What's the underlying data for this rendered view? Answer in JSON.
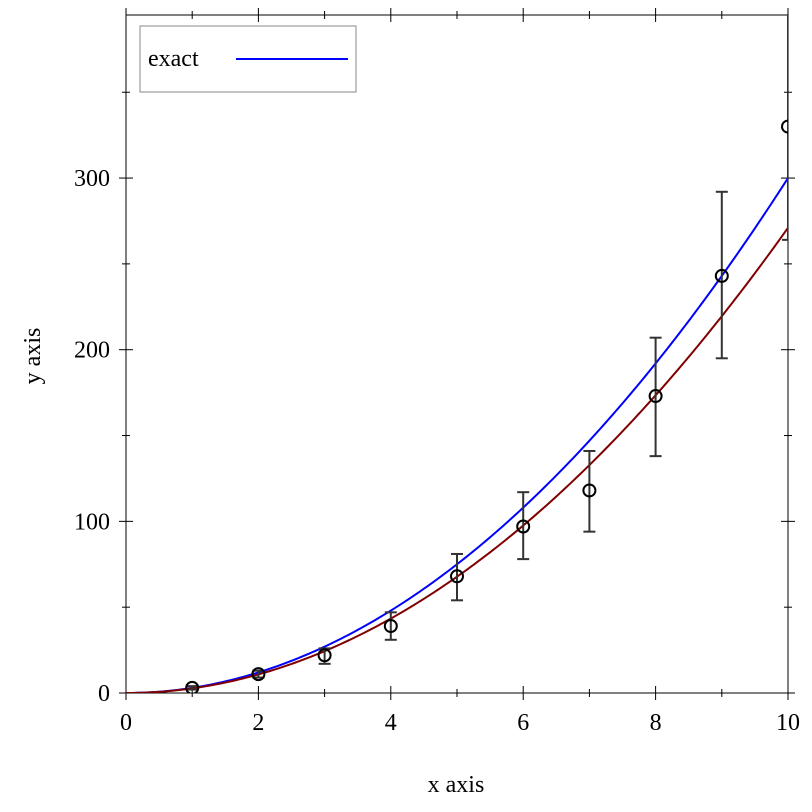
{
  "chart_data": {
    "type": "scatter",
    "xlabel": "x axis",
    "ylabel": "y axis",
    "xlim": [
      0,
      10
    ],
    "ylim": [
      0,
      395
    ],
    "x_ticks": [
      0,
      2,
      4,
      6,
      8,
      10
    ],
    "y_ticks": [
      0,
      100,
      200,
      300
    ],
    "x_tick_labels": [
      "0",
      "2",
      "4",
      "6",
      "8",
      "10"
    ],
    "y_tick_labels": [
      "0",
      "100",
      "200",
      "300"
    ],
    "grid": false,
    "legend_position": "top-left",
    "series": [
      {
        "name": "exact",
        "kind": "line",
        "color": "#0000ff",
        "formula": "3x^2",
        "x": [
          0,
          1,
          2,
          3,
          4,
          5,
          6,
          7,
          8,
          9,
          10
        ],
        "y": [
          0,
          3,
          12,
          27,
          48,
          75,
          108,
          147,
          192,
          243,
          300
        ]
      },
      {
        "kind": "line",
        "color": "#800000",
        "formula": "2.71x^2",
        "x": [
          0,
          1,
          2,
          3,
          4,
          5,
          6,
          7,
          8,
          9,
          10
        ],
        "y": [
          0,
          2.71,
          10.84,
          24.39,
          43.36,
          67.75,
          97.56,
          132.79,
          173.44,
          219.51,
          271
        ]
      },
      {
        "kind": "points-with-error-bars",
        "color": "#000000",
        "marker": "circle",
        "x": [
          1,
          2,
          3,
          4,
          5,
          6,
          7,
          8,
          9,
          10
        ],
        "y": [
          3,
          11,
          22,
          39,
          68,
          97,
          118,
          173,
          243,
          330
        ],
        "err_low": [
          2,
          9,
          17,
          31,
          54,
          78,
          94,
          138,
          195,
          264
        ],
        "err_high": [
          4,
          13,
          26,
          47,
          81,
          117,
          141,
          207,
          292,
          396
        ]
      }
    ]
  }
}
